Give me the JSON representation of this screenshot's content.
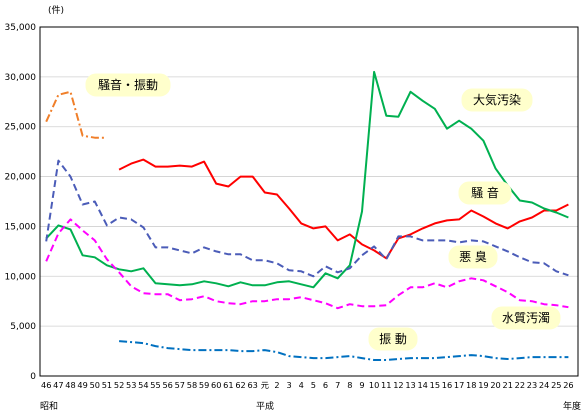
{
  "chart_data": {
    "type": "line",
    "y_unit": "(件)",
    "yticks": [
      "0",
      "5,000",
      "10,000",
      "15,000",
      "20,000",
      "25,000",
      "30,000",
      "35,000"
    ],
    "ylim": [
      0,
      35000
    ],
    "x": [
      "46",
      "47",
      "48",
      "49",
      "50",
      "51",
      "52",
      "53",
      "54",
      "55",
      "56",
      "57",
      "58",
      "59",
      "60",
      "61",
      "62",
      "63",
      "元",
      "2",
      "3",
      "4",
      "5",
      "6",
      "7",
      "8",
      "9",
      "10",
      "11",
      "12",
      "13",
      "14",
      "15",
      "16",
      "17",
      "18",
      "19",
      "20",
      "21",
      "22",
      "23",
      "24",
      "25",
      "26"
    ],
    "era_labels": {
      "showa": "昭和",
      "heisei": "平成",
      "year": "年度"
    },
    "grid": true,
    "series": [
      {
        "name": "騒音・振動",
        "color": "#f07f2a",
        "dash": "dashdot",
        "values": [
          25500,
          28200,
          28500,
          24100,
          23900,
          23900,
          null,
          null,
          null,
          null,
          null,
          null,
          null,
          null,
          null,
          null,
          null,
          null,
          null,
          null,
          null,
          null,
          null,
          null,
          null,
          null,
          null,
          null,
          null,
          null,
          null,
          null,
          null,
          null,
          null,
          null,
          null,
          null,
          null,
          null,
          null,
          null,
          null,
          null
        ]
      },
      {
        "name": "騒音",
        "color": "#ff0000",
        "dash": "solid",
        "values": [
          null,
          null,
          null,
          null,
          null,
          null,
          20700,
          21300,
          21700,
          21000,
          21000,
          21100,
          21000,
          21500,
          19300,
          19000,
          20000,
          20000,
          18400,
          18200,
          16800,
          15300,
          14800,
          15000,
          13600,
          14200,
          13200,
          12600,
          11800,
          13800,
          14200,
          14800,
          15300,
          15600,
          15700,
          16600,
          16000,
          15300,
          14800,
          15500,
          15900,
          16600,
          16600,
          17200
        ]
      },
      {
        "name": "大気汚染",
        "color": "#00b050",
        "dash": "solid",
        "values": [
          13800,
          15100,
          14700,
          12100,
          11900,
          11100,
          10700,
          10500,
          10800,
          9300,
          9200,
          9100,
          9200,
          9500,
          9300,
          9000,
          9400,
          9100,
          9100,
          9400,
          9500,
          9200,
          8900,
          10300,
          9800,
          11100,
          16500,
          30500,
          26100,
          26000,
          28500,
          27600,
          26800,
          24800,
          25600,
          24800,
          23600,
          20800,
          19100,
          17600,
          17400,
          16800,
          16400,
          15900
        ]
      },
      {
        "name": "悪臭",
        "color": "#4b5cb8",
        "dash": "dashed",
        "values": [
          13500,
          21600,
          20000,
          17200,
          17500,
          15100,
          15900,
          15700,
          14900,
          12900,
          12900,
          12600,
          12300,
          12900,
          12500,
          12200,
          12200,
          11600,
          11600,
          11300,
          10600,
          10500,
          10000,
          11000,
          10400,
          10800,
          12100,
          13000,
          11700,
          14000,
          14000,
          13600,
          13600,
          13600,
          13400,
          13600,
          13500,
          13000,
          12500,
          11900,
          11400,
          11300,
          10500,
          10100
        ]
      },
      {
        "name": "水質汚濁",
        "color": "#ff00ff",
        "dash": "dashed",
        "values": [
          11500,
          14300,
          15700,
          14600,
          13600,
          11700,
          10400,
          9000,
          8300,
          8200,
          8200,
          7600,
          7700,
          8000,
          7500,
          7300,
          7200,
          7500,
          7500,
          7700,
          7700,
          7900,
          7600,
          7300,
          6800,
          7200,
          7000,
          7000,
          7100,
          8100,
          8900,
          8900,
          9300,
          8900,
          9500,
          9800,
          9600,
          9000,
          8400,
          7600,
          7500,
          7200,
          7100,
          6900
        ]
      },
      {
        "name": "振動",
        "color": "#0070c0",
        "dash": "dashdot",
        "values": [
          null,
          null,
          null,
          null,
          null,
          null,
          3500,
          3400,
          3300,
          3000,
          2800,
          2700,
          2600,
          2600,
          2600,
          2600,
          2500,
          2500,
          2600,
          2400,
          2000,
          1900,
          1800,
          1800,
          1900,
          2000,
          1800,
          1600,
          1600,
          1700,
          1800,
          1800,
          1800,
          1900,
          2000,
          2100,
          2000,
          1800,
          1700,
          1800,
          1900,
          1900,
          1900,
          1900
        ]
      }
    ],
    "series_labels": [
      {
        "series": 0,
        "text": "騒音・振動",
        "boxed": true
      },
      {
        "series": 2,
        "text": "大気汚染",
        "boxed": true
      },
      {
        "series": 1,
        "text": "騒 音",
        "boxed": true
      },
      {
        "series": 3,
        "text": "悪 臭",
        "boxed": true
      },
      {
        "series": 4,
        "text": "水質汚濁",
        "boxed": true
      },
      {
        "series": 5,
        "text": "振 動",
        "boxed": true
      }
    ]
  }
}
